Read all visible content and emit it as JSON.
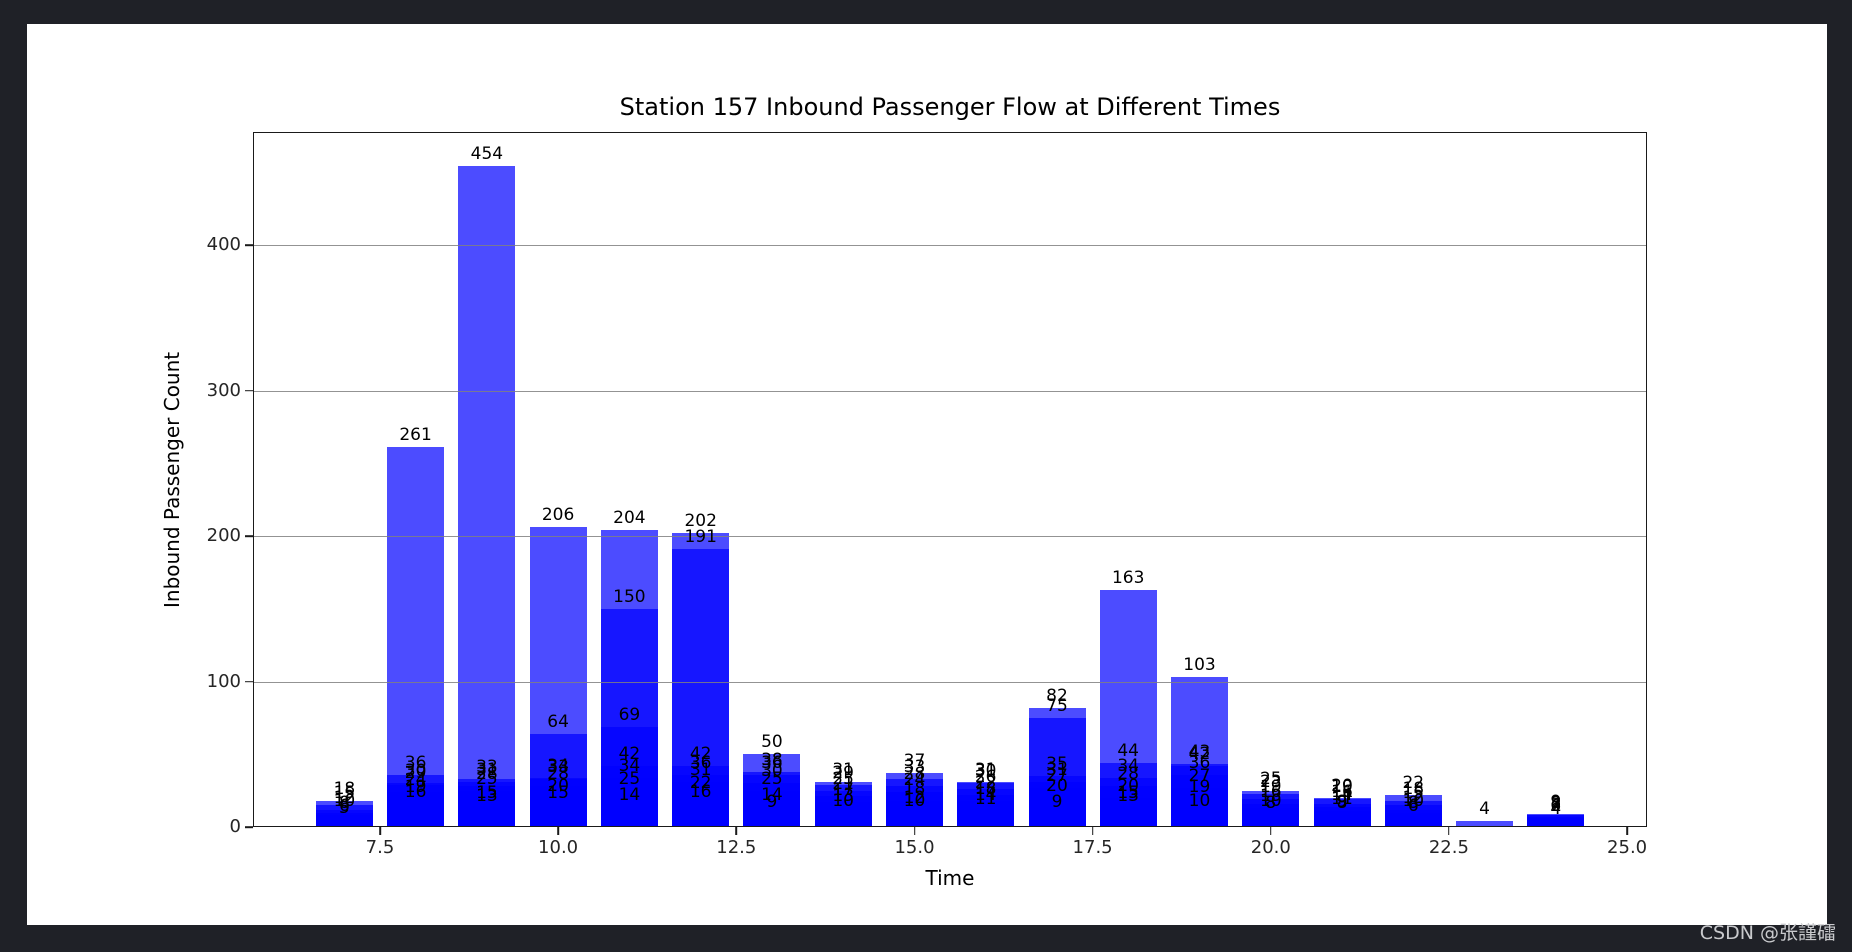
{
  "watermark": "CSDN @张謹礌",
  "chart_data": {
    "type": "bar",
    "title": "Station 157 Inbound Passenger Flow at Different Times",
    "xlabel": "Time",
    "ylabel": "Inbound Passenger Count",
    "legend": "none",
    "grid": "horizontal-y, drawn above bars",
    "bar_fill": "rgba(0,0,255,0.7)",
    "bar_width_units": 0.8,
    "xlim": [
      5.72,
      25.28
    ],
    "ylim": [
      0,
      477
    ],
    "xticks": [
      7.5,
      10.0,
      12.5,
      15.0,
      17.5,
      20.0,
      22.5,
      25.0
    ],
    "xtick_labels": [
      "7.5",
      "10.0",
      "12.5",
      "15.0",
      "17.5",
      "20.0",
      "22.5",
      "25.0"
    ],
    "yticks": [
      0,
      100,
      200,
      300,
      400
    ],
    "ytick_labels": [
      "0",
      "100",
      "200",
      "300",
      "400"
    ],
    "note": "Multiple overlapping translucent series per hour (one bar per day); each bar has a black value label above it, labels overlap into blobs",
    "groups": [
      {
        "time": 7,
        "values": [
          18,
          15,
          12,
          10,
          8,
          6,
          5
        ]
      },
      {
        "time": 8,
        "values": [
          261,
          36,
          30,
          29,
          24,
          19,
          16
        ]
      },
      {
        "time": 9,
        "values": [
          454,
          33,
          31,
          28,
          25,
          15,
          13
        ]
      },
      {
        "time": 10,
        "values": [
          206,
          64,
          34,
          33,
          28,
          20,
          15
        ]
      },
      {
        "time": 11,
        "values": [
          204,
          150,
          69,
          42,
          34,
          25,
          14
        ]
      },
      {
        "time": 12,
        "values": [
          202,
          191,
          42,
          36,
          31,
          22,
          16
        ]
      },
      {
        "time": 13,
        "values": [
          50,
          38,
          36,
          30,
          25,
          14,
          9
        ]
      },
      {
        "time": 14,
        "values": [
          31,
          29,
          25,
          21,
          17,
          13,
          10
        ]
      },
      {
        "time": 15,
        "values": [
          37,
          33,
          28,
          24,
          18,
          12,
          10
        ]
      },
      {
        "time": 16,
        "values": [
          31,
          30,
          26,
          22,
          18,
          14,
          11
        ]
      },
      {
        "time": 17,
        "values": [
          82,
          75,
          35,
          31,
          27,
          20,
          9
        ]
      },
      {
        "time": 18,
        "values": [
          163,
          44,
          34,
          28,
          20,
          15,
          13
        ]
      },
      {
        "time": 19,
        "values": [
          103,
          43,
          42,
          36,
          27,
          19,
          10
        ]
      },
      {
        "time": 20,
        "values": [
          25,
          23,
          19,
          16,
          13,
          10,
          8
        ]
      },
      {
        "time": 21,
        "values": [
          20,
          19,
          16,
          14,
          11,
          9,
          8
        ]
      },
      {
        "time": 22,
        "values": [
          22,
          18,
          15,
          12,
          10,
          8,
          6
        ]
      },
      {
        "time": 23,
        "values": [
          4
        ]
      },
      {
        "time": 24,
        "values": [
          9,
          8,
          8,
          7,
          6,
          4
        ]
      }
    ]
  }
}
